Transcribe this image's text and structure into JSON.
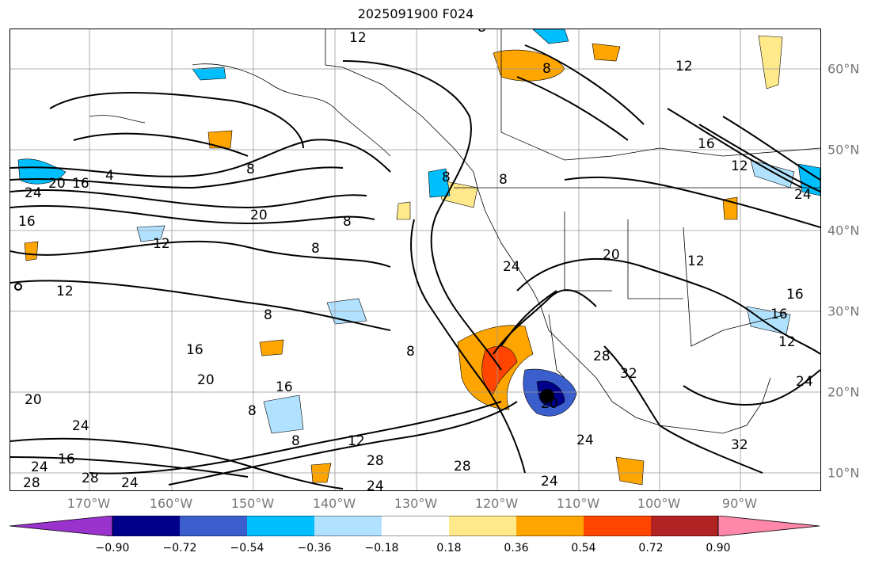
{
  "title": "2025091900 F024",
  "lat_labels": [
    "60°N",
    "50°N",
    "40°N",
    "30°N",
    "20°N",
    "10°N"
  ],
  "lon_labels": [
    "170°W",
    "160°W",
    "150°W",
    "140°W",
    "130°W",
    "120°W",
    "110°W",
    "100°W",
    "90°W"
  ],
  "colorbar": {
    "colors": [
      "#9a32cd",
      "#00008b",
      "#3a5fcd",
      "#00bfff",
      "#b0e2ff",
      "#ffffff",
      "#ffe98a",
      "#ffa500",
      "#ff4500",
      "#b22222",
      "#ff88aa"
    ],
    "tick_labels": [
      "−0.90",
      "−0.72",
      "−0.54",
      "−0.36",
      "−0.18",
      "0.18",
      "0.36",
      "0.54",
      "0.72",
      "0.90"
    ]
  },
  "contour_labels": [
    "12",
    "8",
    "12",
    "8",
    "4",
    "16",
    "20",
    "24",
    "20",
    "16",
    "8",
    "12",
    "8",
    "8",
    "12",
    "8",
    "16",
    "20",
    "16",
    "20",
    "24",
    "16",
    "24",
    "28",
    "28",
    "24",
    "28",
    "24",
    "8",
    "12",
    "28",
    "24",
    "24",
    "20",
    "12",
    "16",
    "12",
    "16",
    "32",
    "28",
    "24",
    "24",
    "20",
    "16",
    "12",
    "24",
    "32",
    "8",
    "8",
    "8",
    "8"
  ],
  "marker": "storm-center"
}
